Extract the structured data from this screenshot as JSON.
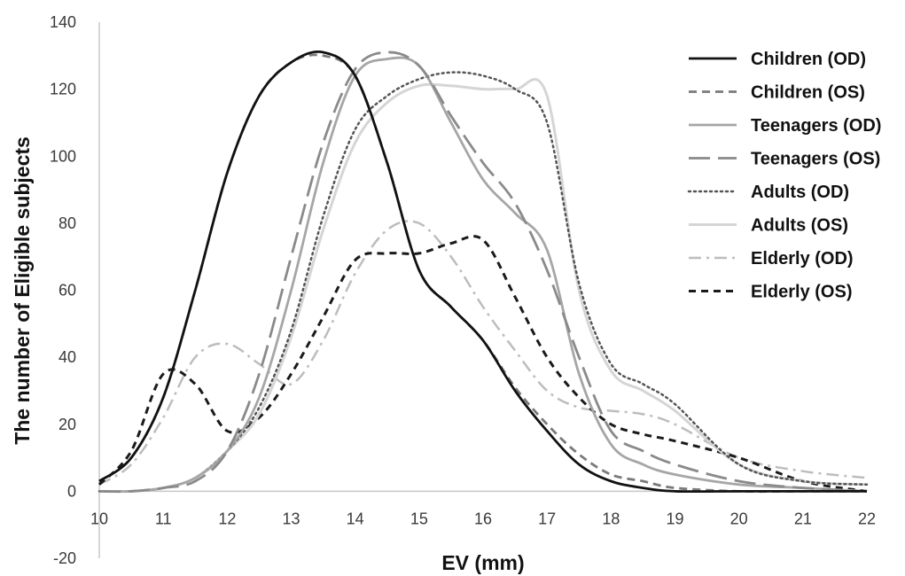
{
  "chart_data": {
    "type": "line",
    "title": "",
    "xlabel": "EV (mm)",
    "ylabel": "The number of Eligible subjects",
    "xlim": [
      10,
      22
    ],
    "ylim": [
      -20,
      140
    ],
    "x_ticks": [
      "10",
      "11",
      "12",
      "13",
      "14",
      "15",
      "16",
      "17",
      "18",
      "19",
      "20",
      "21",
      "22"
    ],
    "y_ticks": [
      "-20",
      "0",
      "20",
      "40",
      "60",
      "80",
      "100",
      "120",
      "140"
    ],
    "grid": false,
    "legend_position": "right",
    "series": [
      {
        "name": "Children (OD)",
        "color": "#111111",
        "dash": "solid",
        "width": 2.8,
        "x": [
          10,
          10.5,
          11,
          11.5,
          12,
          12.5,
          13,
          13.5,
          14,
          14.5,
          15,
          15.5,
          16,
          16.5,
          17,
          17.5,
          18,
          18.5,
          19,
          20,
          21,
          22
        ],
        "y": [
          3,
          10,
          28,
          60,
          95,
          118,
          128,
          131,
          124,
          98,
          66,
          55,
          45,
          30,
          18,
          8,
          3,
          1,
          0,
          0,
          0,
          0
        ]
      },
      {
        "name": "Children (OS)",
        "color": "#7a7a7a",
        "dash": "dashed",
        "width": 2.8,
        "x": [
          10,
          10.5,
          11,
          11.5,
          12,
          12.5,
          13,
          13.5,
          14,
          14.5,
          15,
          15.5,
          16,
          16.5,
          17,
          17.5,
          18,
          18.5,
          19,
          20,
          21,
          22
        ],
        "y": [
          3,
          10,
          28,
          60,
          95,
          118,
          128,
          130,
          124,
          98,
          66,
          55,
          45,
          31,
          20,
          11,
          5,
          3,
          1,
          0,
          0,
          0
        ]
      },
      {
        "name": "Teenagers (OD)",
        "color": "#a6a6a6",
        "dash": "solid",
        "width": 2.8,
        "x": [
          10,
          10.5,
          11,
          11.5,
          12,
          12.5,
          13,
          13.5,
          14,
          14.5,
          15,
          15.5,
          16,
          16.5,
          17,
          17.5,
          18,
          18.5,
          19,
          20,
          21,
          22
        ],
        "y": [
          0,
          0,
          1,
          4,
          12,
          28,
          60,
          98,
          124,
          129,
          127,
          110,
          93,
          83,
          72,
          35,
          14,
          8,
          5,
          2,
          1,
          0
        ]
      },
      {
        "name": "Teenagers (OS)",
        "color": "#8a8a8a",
        "dash": "longdash",
        "width": 2.8,
        "x": [
          10,
          10.5,
          11,
          11.5,
          12,
          12.5,
          13,
          13.5,
          14,
          14.5,
          15,
          15.5,
          16,
          16.5,
          17,
          17.5,
          18,
          18.5,
          19,
          20,
          21,
          22
        ],
        "y": [
          0,
          0,
          1,
          3,
          12,
          35,
          70,
          104,
          126,
          131,
          127,
          112,
          98,
          86,
          66,
          40,
          18,
          12,
          8,
          3,
          1,
          0
        ]
      },
      {
        "name": "Adults (OD)",
        "color": "#555555",
        "dash": "dotted",
        "width": 2.5,
        "x": [
          10,
          10.5,
          11,
          11.5,
          12,
          12.5,
          13,
          13.5,
          14,
          14.5,
          15,
          15.5,
          16,
          16.5,
          17,
          17.5,
          18,
          18.5,
          19,
          20,
          21,
          22
        ],
        "y": [
          0,
          0,
          1,
          4,
          12,
          25,
          48,
          82,
          108,
          118,
          123,
          125,
          124,
          120,
          110,
          62,
          38,
          32,
          26,
          8,
          3,
          2
        ]
      },
      {
        "name": "Adults (OS)",
        "color": "#d5d5d5",
        "dash": "solid",
        "width": 3,
        "x": [
          10,
          10.5,
          11,
          11.5,
          12,
          12.5,
          13,
          13.5,
          14,
          14.5,
          15,
          15.5,
          16,
          16.5,
          17,
          17.5,
          18,
          18.5,
          19,
          20,
          21,
          22
        ],
        "y": [
          0,
          0,
          1,
          4,
          12,
          23,
          46,
          78,
          104,
          116,
          121,
          121,
          120,
          120,
          118,
          60,
          36,
          30,
          24,
          8,
          3,
          2
        ]
      },
      {
        "name": "Elderly (OD)",
        "color": "#bdbdbd",
        "dash": "dashdot",
        "width": 2.5,
        "x": [
          10,
          10.5,
          11,
          11.5,
          12,
          12.5,
          13,
          13.5,
          14,
          14.5,
          15,
          15.5,
          16,
          16.5,
          17,
          17.5,
          18,
          18.5,
          19,
          20,
          21,
          22
        ],
        "y": [
          2,
          8,
          22,
          40,
          44,
          38,
          32,
          45,
          65,
          78,
          80,
          70,
          55,
          42,
          30,
          25,
          24,
          23,
          20,
          10,
          6,
          4
        ]
      },
      {
        "name": "Elderly (OS)",
        "color": "#1a1a1a",
        "dash": "shortdash",
        "width": 3,
        "x": [
          10,
          10.5,
          11,
          11.5,
          12,
          12.5,
          13,
          13.5,
          14,
          14.5,
          15,
          15.5,
          16,
          16.5,
          17,
          17.5,
          18,
          18.5,
          19,
          20,
          21,
          22
        ],
        "y": [
          2,
          12,
          35,
          32,
          18,
          22,
          35,
          52,
          69,
          71,
          71,
          74,
          75,
          58,
          40,
          28,
          20,
          17,
          15,
          10,
          3,
          0
        ]
      }
    ]
  }
}
